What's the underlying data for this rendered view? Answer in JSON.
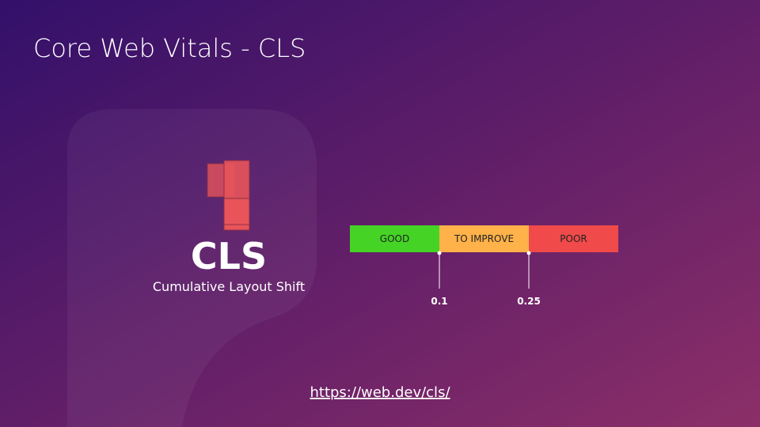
{
  "header": {
    "title": "Core Web Vitals - CLS"
  },
  "metric": {
    "abbr": "CLS",
    "name": "Cumulative Layout Shift"
  },
  "scale": {
    "segments": [
      "GOOD",
      "TO IMPROVE",
      "POOR"
    ],
    "thresholds": [
      "0.1",
      "0.25"
    ]
  },
  "footer": {
    "link": "https://web.dev/cls/"
  }
}
